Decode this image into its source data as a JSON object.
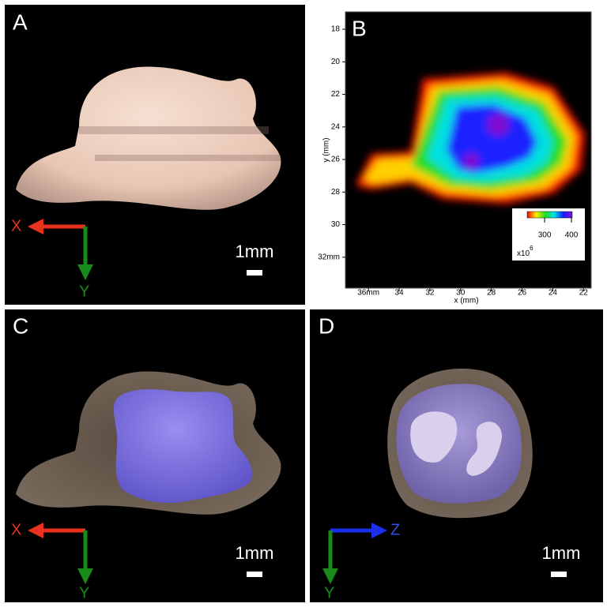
{
  "panels": [
    {
      "label": "A",
      "axes": [
        "X",
        "Y"
      ],
      "scale_bar": "1mm"
    },
    {
      "label": "B",
      "xlabel": "x (mm)",
      "ylabel": "y (mm)",
      "xlim": [
        37.5,
        21.5
      ],
      "xticks": [
        {
          "value": 36,
          "label": "36mm"
        },
        34,
        32,
        30,
        28,
        26,
        24,
        22
      ],
      "ylim": [
        16.93,
        33.9
      ],
      "yticks": [
        18,
        20,
        22,
        24,
        26,
        28,
        30,
        {
          "value": 32,
          "label": "32mm"
        }
      ],
      "colorbar": {
        "lim": [
          235,
          403
        ],
        "ticks": [
          300,
          400
        ],
        "multiplier": "x10",
        "exponent": "6"
      }
    },
    {
      "label": "C",
      "axes": [
        "X",
        "Y"
      ],
      "scale_bar": "1mm"
    },
    {
      "label": "D",
      "axes": [
        "Z",
        "Y"
      ],
      "scale_bar": "1mm"
    }
  ]
}
